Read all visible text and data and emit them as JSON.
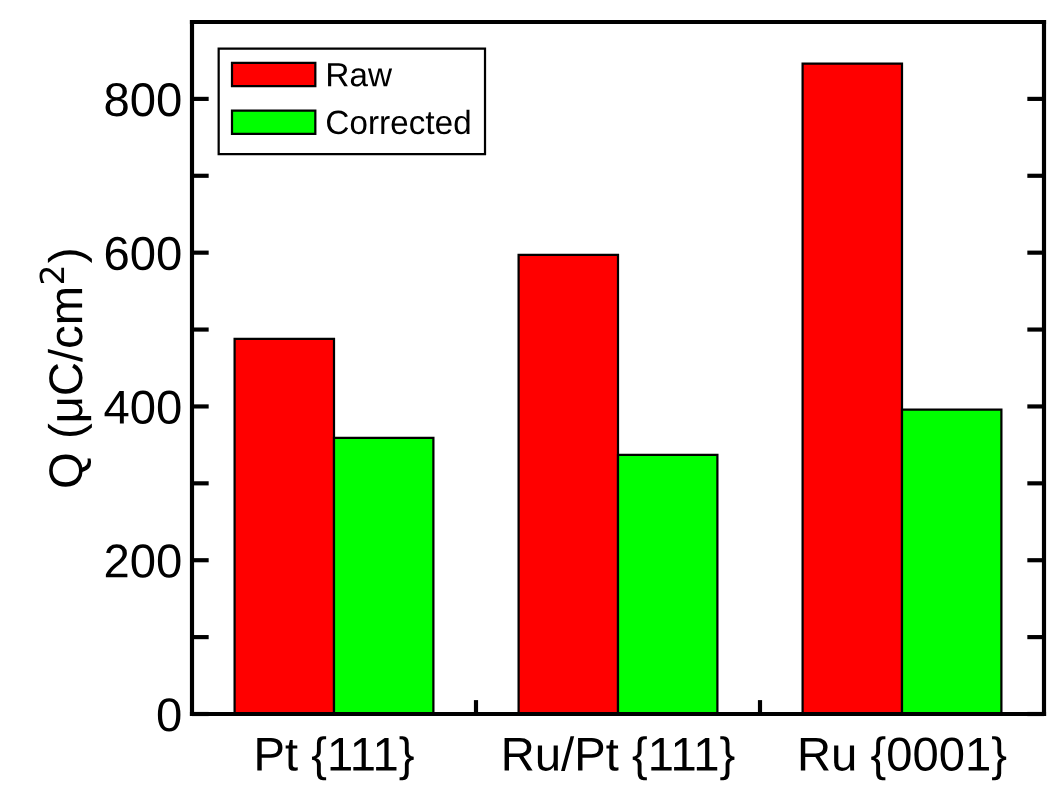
{
  "chart_data": {
    "type": "bar",
    "ylabel": "Q (μC/cm$^{2}$)",
    "categories": [
      "Pt {111}",
      "Ru/Pt {111}",
      "Ru {0001}"
    ],
    "series": [
      {
        "name": "Raw",
        "color": "#ff0000",
        "values": [
          488,
          597,
          846
        ]
      },
      {
        "name": "Corrected",
        "color": "#00ff00",
        "values": [
          359,
          337,
          396
        ]
      }
    ],
    "ylim": [
      0,
      900
    ],
    "yticks": [
      0,
      {
        "value": 100,
        "label": null
      },
      200,
      {
        "value": 300,
        "label": null
      },
      400,
      {
        "value": 500,
        "label": null
      },
      600,
      {
        "value": 700,
        "label": null
      },
      800
    ],
    "grid": false,
    "legend": "top left"
  }
}
